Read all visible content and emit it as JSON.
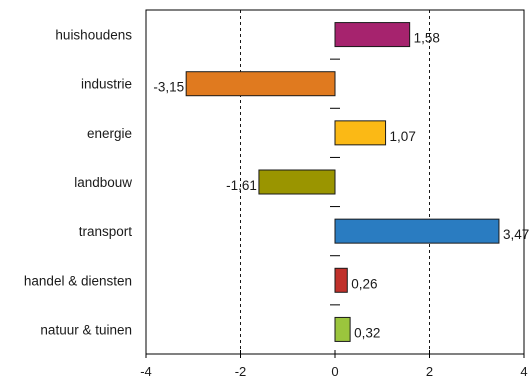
{
  "chart_data": {
    "type": "bar",
    "orientation": "horizontal",
    "categories": [
      "huishoudens",
      "industrie",
      "energie",
      "landbouw",
      "transport",
      "handel & diensten",
      "natuur & tuinen"
    ],
    "values": [
      1.58,
      -3.15,
      1.07,
      -1.61,
      3.47,
      0.26,
      0.32
    ],
    "value_labels": [
      "1,58",
      "-3,15",
      "1,07",
      "-1,61",
      "3,47",
      "0,26",
      "0,32"
    ],
    "colors": [
      "#a6236e",
      "#e07a1f",
      "#fbb915",
      "#9a9500",
      "#2a7cc1",
      "#c0312b",
      "#9bc53d"
    ],
    "xlim": [
      -4,
      4
    ],
    "xticks": [
      -4,
      -2,
      0,
      2,
      4
    ],
    "xtick_labels": [
      "-4",
      "-2",
      "0",
      "2",
      "4"
    ],
    "gridlines_at": [
      -2,
      2
    ],
    "gridline_style": "dashed",
    "title": "",
    "xlabel": "",
    "ylabel": ""
  }
}
